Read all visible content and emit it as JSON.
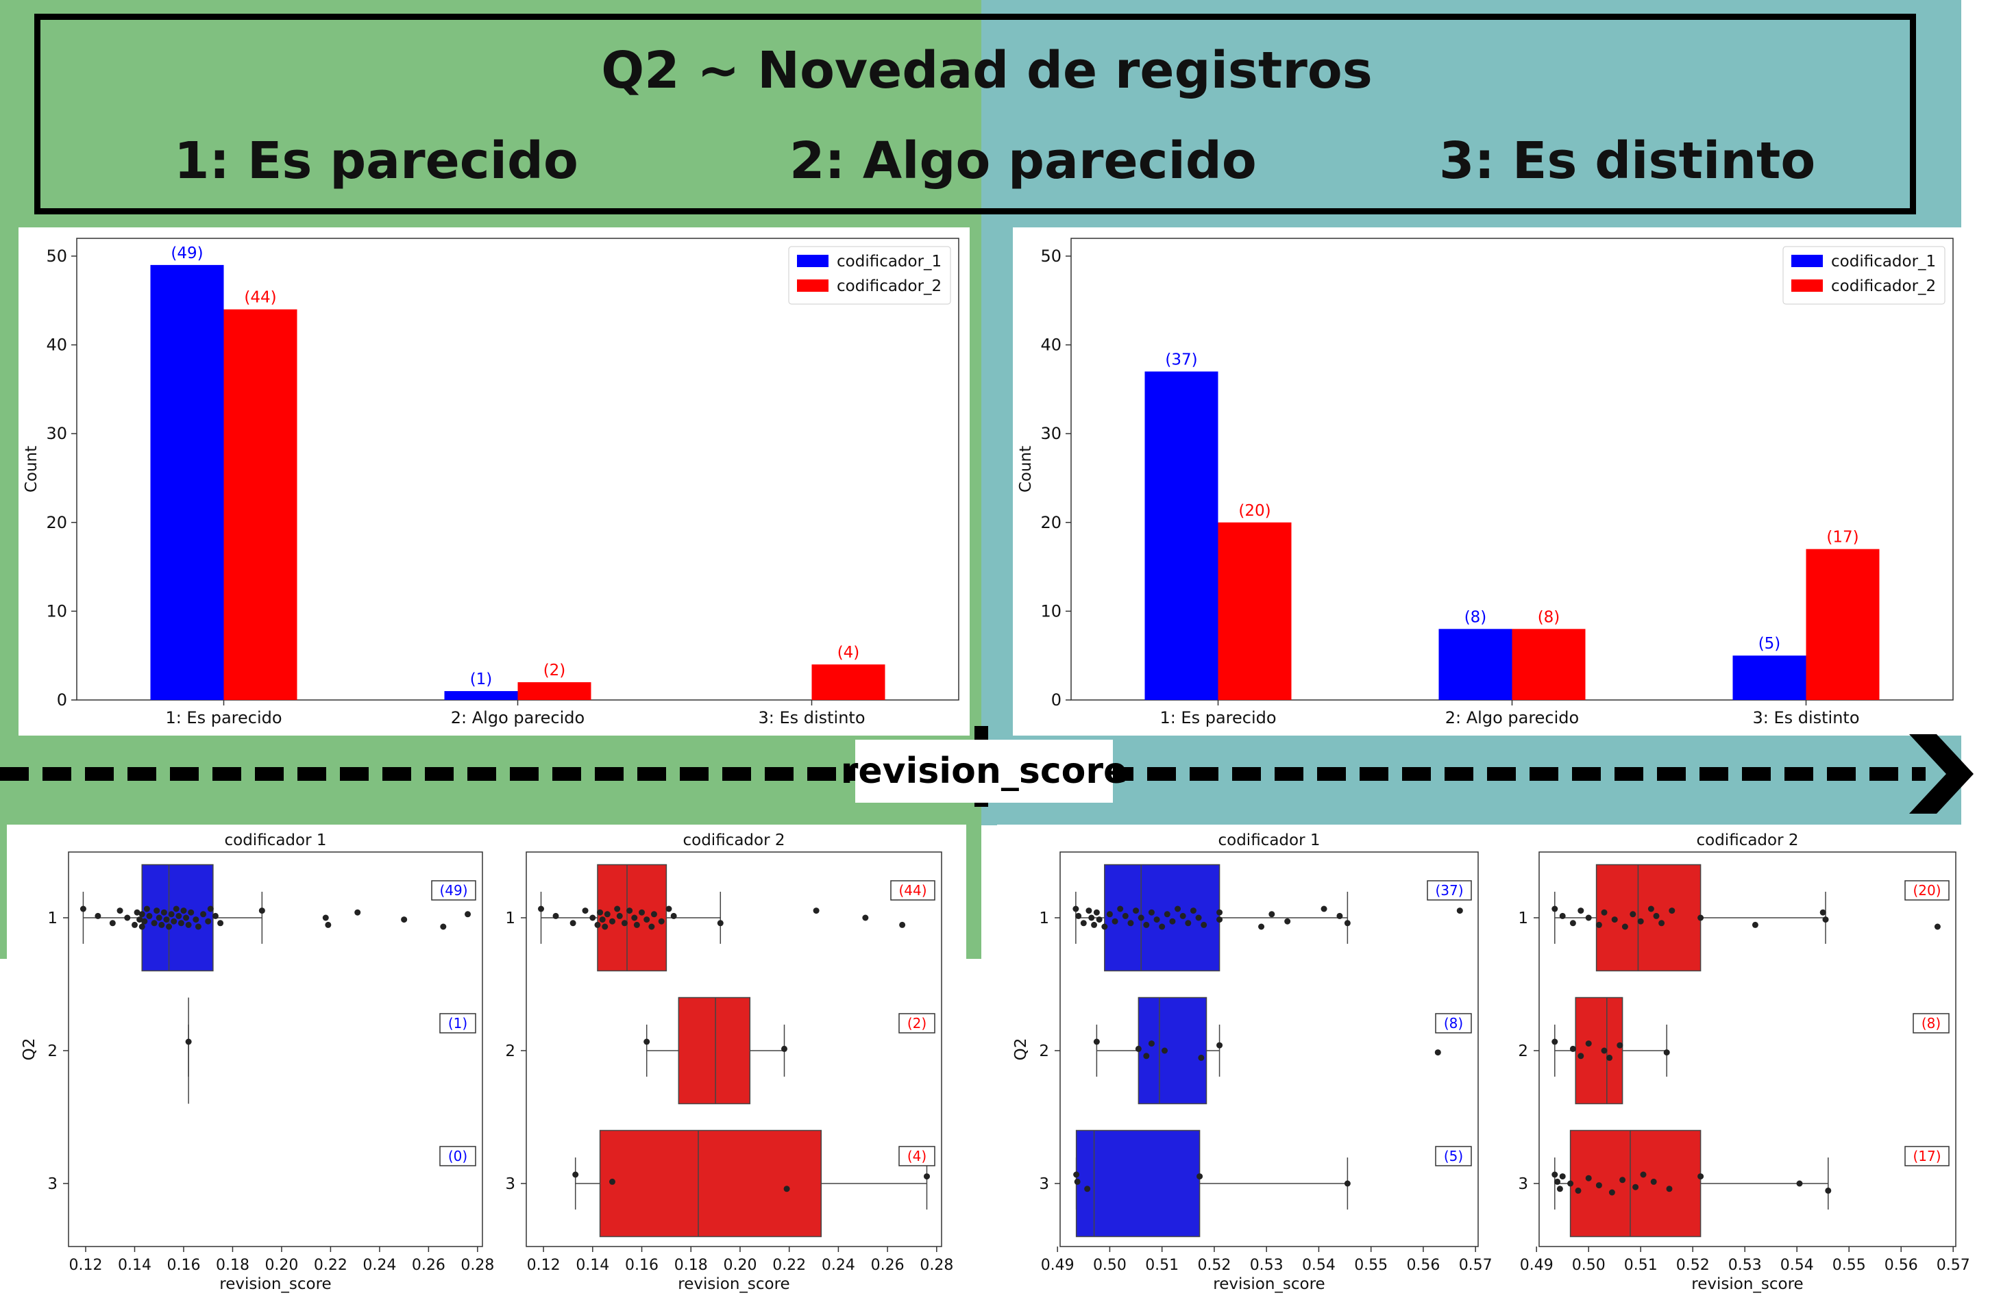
{
  "header": {
    "title": "Q2 ~ Novedad de registros",
    "categories": [
      "1: Es parecido",
      "2: Algo parecido",
      "3: Es distinto"
    ]
  },
  "axis_banner": "revision_score",
  "colors": {
    "codificador_1": "#0000ff",
    "codificador_2": "#ff0000",
    "box_1": "#1f1fe0",
    "box_2": "#e02020",
    "bg_left": "#80c080",
    "bg_right": "#80bfc0"
  },
  "chart_data": [
    {
      "type": "bar",
      "panel": "left-bars",
      "categories": [
        "1: Es parecido",
        "2: Algo parecido",
        "3: Es distinto"
      ],
      "series": [
        {
          "name": "codificador_1",
          "values": [
            49,
            1,
            0
          ],
          "labels": [
            "(49)",
            "(1)",
            ""
          ]
        },
        {
          "name": "codificador_2",
          "values": [
            44,
            2,
            4
          ],
          "labels": [
            "(44)",
            "(2)",
            "(4)"
          ]
        }
      ],
      "ylabel": "Count",
      "ylim": [
        0,
        52
      ],
      "yticks": [
        0,
        10,
        20,
        30,
        40,
        50
      ],
      "legend": "top-right"
    },
    {
      "type": "bar",
      "panel": "right-bars",
      "categories": [
        "1: Es parecido",
        "2: Algo parecido",
        "3: Es distinto"
      ],
      "series": [
        {
          "name": "codificador_1",
          "values": [
            37,
            8,
            5
          ],
          "labels": [
            "(37)",
            "(8)",
            "(5)"
          ]
        },
        {
          "name": "codificador_2",
          "values": [
            20,
            8,
            17
          ],
          "labels": [
            "(20)",
            "(8)",
            "(17)"
          ]
        }
      ],
      "ylabel": "Count",
      "ylim": [
        0,
        52
      ],
      "yticks": [
        0,
        10,
        20,
        30,
        40,
        50
      ],
      "legend": "top-right"
    },
    {
      "type": "box",
      "title": "codificador 1",
      "xlabel": "revision_score",
      "ylabel": "Q2",
      "xlim": [
        0.113,
        0.282
      ],
      "xticks": [
        "0.12",
        "0.14",
        "0.16",
        "0.18",
        "0.20",
        "0.22",
        "0.24",
        "0.26",
        "0.28"
      ],
      "yticks": [
        "1",
        "2",
        "3"
      ],
      "color": "#1f1fe0",
      "counts": [
        "(49)",
        "(1)",
        "(0)"
      ],
      "count_color": "#0000ff",
      "boxes": [
        {
          "q1": 0.143,
          "med": 0.154,
          "q3": 0.172,
          "wlo": 0.119,
          "whi": 0.192
        },
        {
          "q1": 0.162,
          "med": 0.162,
          "q3": 0.162,
          "wlo": 0.162,
          "whi": 0.162
        },
        null
      ],
      "points": [
        [
          0.119,
          0.125,
          0.131,
          0.134,
          0.137,
          0.14,
          0.141,
          0.142,
          0.143,
          0.143,
          0.144,
          0.145,
          0.146,
          0.148,
          0.149,
          0.15,
          0.151,
          0.152,
          0.153,
          0.154,
          0.155,
          0.156,
          0.157,
          0.158,
          0.159,
          0.16,
          0.161,
          0.162,
          0.163,
          0.165,
          0.166,
          0.168,
          0.17,
          0.171,
          0.173,
          0.175,
          0.192,
          0.218,
          0.219,
          0.231,
          0.25,
          0.266,
          0.276
        ],
        [
          0.162
        ],
        []
      ]
    },
    {
      "type": "box",
      "title": "codificador 2",
      "xlabel": "revision_score",
      "xlim": [
        0.113,
        0.282
      ],
      "xticks": [
        "0.12",
        "0.14",
        "0.16",
        "0.18",
        "0.20",
        "0.22",
        "0.24",
        "0.26",
        "0.28"
      ],
      "yticks": [
        "1",
        "2",
        "3"
      ],
      "color": "#e02020",
      "counts": [
        "(44)",
        "(2)",
        "(4)"
      ],
      "count_color": "#ff0000",
      "boxes": [
        {
          "q1": 0.142,
          "med": 0.154,
          "q3": 0.17,
          "wlo": 0.119,
          "whi": 0.192
        },
        {
          "q1": 0.175,
          "med": 0.19,
          "q3": 0.204,
          "wlo": 0.162,
          "whi": 0.218
        },
        {
          "q1": 0.143,
          "med": 0.183,
          "q3": 0.233,
          "wlo": 0.133,
          "whi": 0.276
        }
      ],
      "points": [
        [
          0.119,
          0.125,
          0.132,
          0.137,
          0.14,
          0.142,
          0.143,
          0.144,
          0.145,
          0.146,
          0.148,
          0.15,
          0.151,
          0.153,
          0.155,
          0.157,
          0.158,
          0.16,
          0.162,
          0.164,
          0.165,
          0.168,
          0.171,
          0.173,
          0.192,
          0.231,
          0.251,
          0.266
        ],
        [
          0.162,
          0.218
        ],
        [
          0.133,
          0.148,
          0.219,
          0.276
        ]
      ]
    },
    {
      "type": "box",
      "title": "codificador 1",
      "xlabel": "revision_score",
      "ylabel": "Q2",
      "xlim": [
        0.4905,
        0.5705
      ],
      "xticks": [
        "0.49",
        "0.50",
        "0.51",
        "0.52",
        "0.53",
        "0.54",
        "0.55",
        "0.56",
        "0.57"
      ],
      "yticks": [
        "1",
        "2",
        "3"
      ],
      "color": "#1f1fe0",
      "counts": [
        "(37)",
        "(8)",
        "(5)"
      ],
      "count_color": "#0000ff",
      "boxes": [
        {
          "q1": 0.499,
          "med": 0.506,
          "q3": 0.521,
          "wlo": 0.4935,
          "whi": 0.5455
        },
        {
          "q1": 0.5055,
          "med": 0.5095,
          "q3": 0.5185,
          "wlo": 0.4975,
          "whi": 0.521
        },
        {
          "q1": 0.4936,
          "med": 0.497,
          "q3": 0.5172,
          "wlo": 0.4936,
          "whi": 0.5455
        }
      ],
      "points": [
        [
          0.4935,
          0.494,
          0.495,
          0.496,
          0.4965,
          0.497,
          0.4975,
          0.498,
          0.499,
          0.5,
          0.501,
          0.502,
          0.503,
          0.504,
          0.505,
          0.506,
          0.507,
          0.508,
          0.509,
          0.51,
          0.511,
          0.512,
          0.513,
          0.514,
          0.515,
          0.516,
          0.517,
          0.518,
          0.521,
          0.521,
          0.529,
          0.531,
          0.534,
          0.541,
          0.544,
          0.5455,
          0.567
        ],
        [
          0.4975,
          0.5055,
          0.507,
          0.508,
          0.5105,
          0.5175,
          0.521,
          0.5628
        ],
        [
          0.4936,
          0.4938,
          0.4957,
          0.5172,
          0.5455
        ]
      ]
    },
    {
      "type": "box",
      "title": "codificador 2",
      "xlabel": "revision_score",
      "xlim": [
        0.4905,
        0.5705
      ],
      "xticks": [
        "0.49",
        "0.50",
        "0.51",
        "0.52",
        "0.53",
        "0.54",
        "0.55",
        "0.56",
        "0.57"
      ],
      "yticks": [
        "1",
        "2",
        "3"
      ],
      "color": "#e02020",
      "counts": [
        "(20)",
        "(8)",
        "(17)"
      ],
      "count_color": "#ff0000",
      "boxes": [
        {
          "q1": 0.5015,
          "med": 0.5095,
          "q3": 0.5215,
          "wlo": 0.4935,
          "whi": 0.5455
        },
        {
          "q1": 0.4975,
          "med": 0.5035,
          "q3": 0.5065,
          "wlo": 0.4935,
          "whi": 0.515
        },
        {
          "q1": 0.4965,
          "med": 0.508,
          "q3": 0.5215,
          "wlo": 0.4935,
          "whi": 0.546
        }
      ],
      "points": [
        [
          0.4935,
          0.495,
          0.497,
          0.4985,
          0.5,
          0.502,
          0.503,
          0.505,
          0.507,
          0.5085,
          0.51,
          0.512,
          0.513,
          0.514,
          0.516,
          0.5215,
          0.532,
          0.545,
          0.5455,
          0.567
        ],
        [
          0.4935,
          0.497,
          0.4985,
          0.5,
          0.503,
          0.504,
          0.506,
          0.515
        ],
        [
          0.4935,
          0.494,
          0.4945,
          0.495,
          0.4965,
          0.498,
          0.5,
          0.502,
          0.5045,
          0.5065,
          0.509,
          0.5105,
          0.5125,
          0.5155,
          0.5215,
          0.5405,
          0.546
        ]
      ]
    }
  ]
}
